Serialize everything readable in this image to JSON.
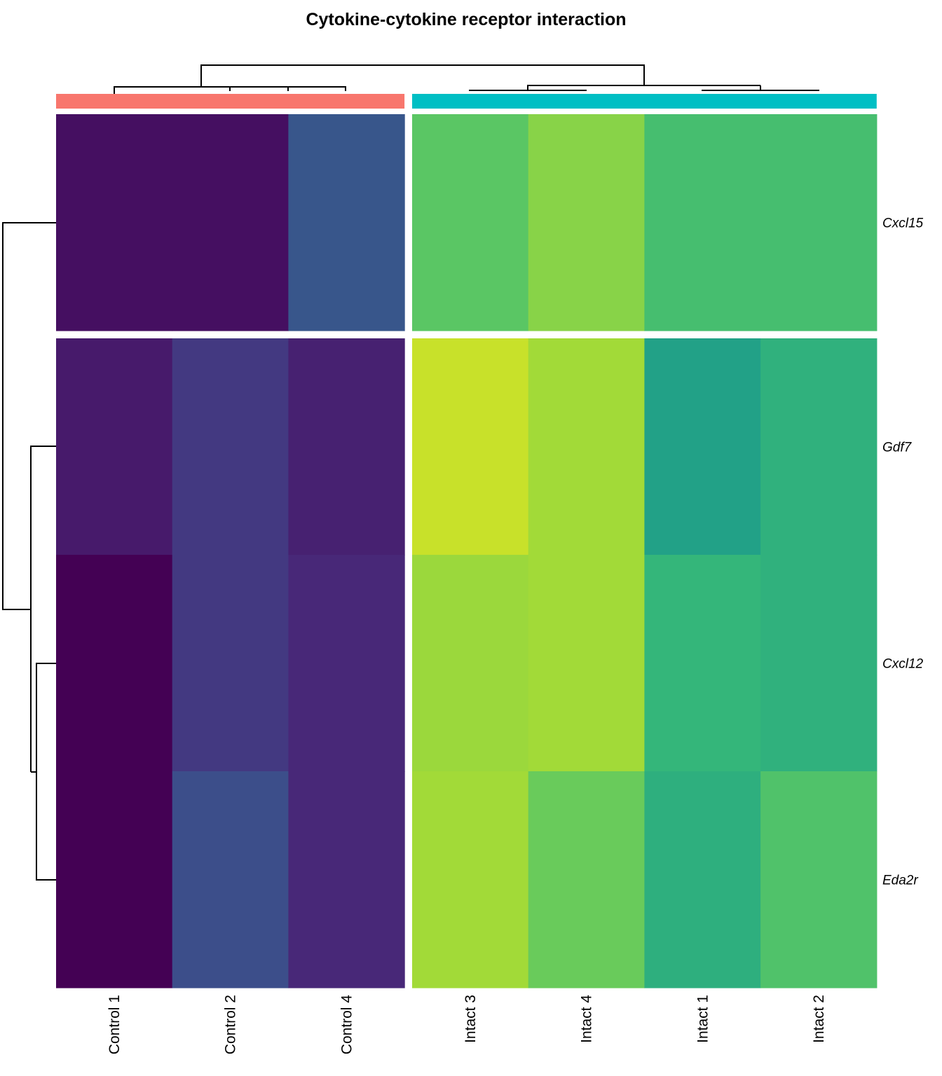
{
  "chart_data": {
    "type": "heatmap",
    "title": "Cytokine-cytokine receptor interaction",
    "columns": [
      "Control 1",
      "Control 2",
      "Control 4",
      "Intact 3",
      "Intact 4",
      "Intact 1",
      "Intact 2"
    ],
    "rows": [
      "Cxcl15",
      "Gdf7",
      "Cxcl12",
      "Eda2r"
    ],
    "column_groups": [
      {
        "color": "#F8766D",
        "columns": [
          "Control 1",
          "Control 2",
          "Control 4"
        ]
      },
      {
        "color": "#00BFC4",
        "columns": [
          "Intact 3",
          "Intact 4",
          "Intact 1",
          "Intact 2"
        ]
      }
    ],
    "row_splits": [
      [
        "Cxcl15"
      ],
      [
        "Gdf7",
        "Cxcl12",
        "Eda2r"
      ]
    ],
    "colormap": "viridis",
    "values": [
      [
        0.04,
        0.04,
        0.27,
        0.74,
        0.82,
        0.7,
        0.7
      ],
      [
        0.07,
        0.17,
        0.09,
        0.92,
        0.86,
        0.57,
        0.64
      ],
      [
        0.0,
        0.17,
        0.11,
        0.85,
        0.86,
        0.66,
        0.64
      ],
      [
        0.0,
        0.24,
        0.11,
        0.86,
        0.77,
        0.63,
        0.72
      ]
    ],
    "legend": "none"
  }
}
